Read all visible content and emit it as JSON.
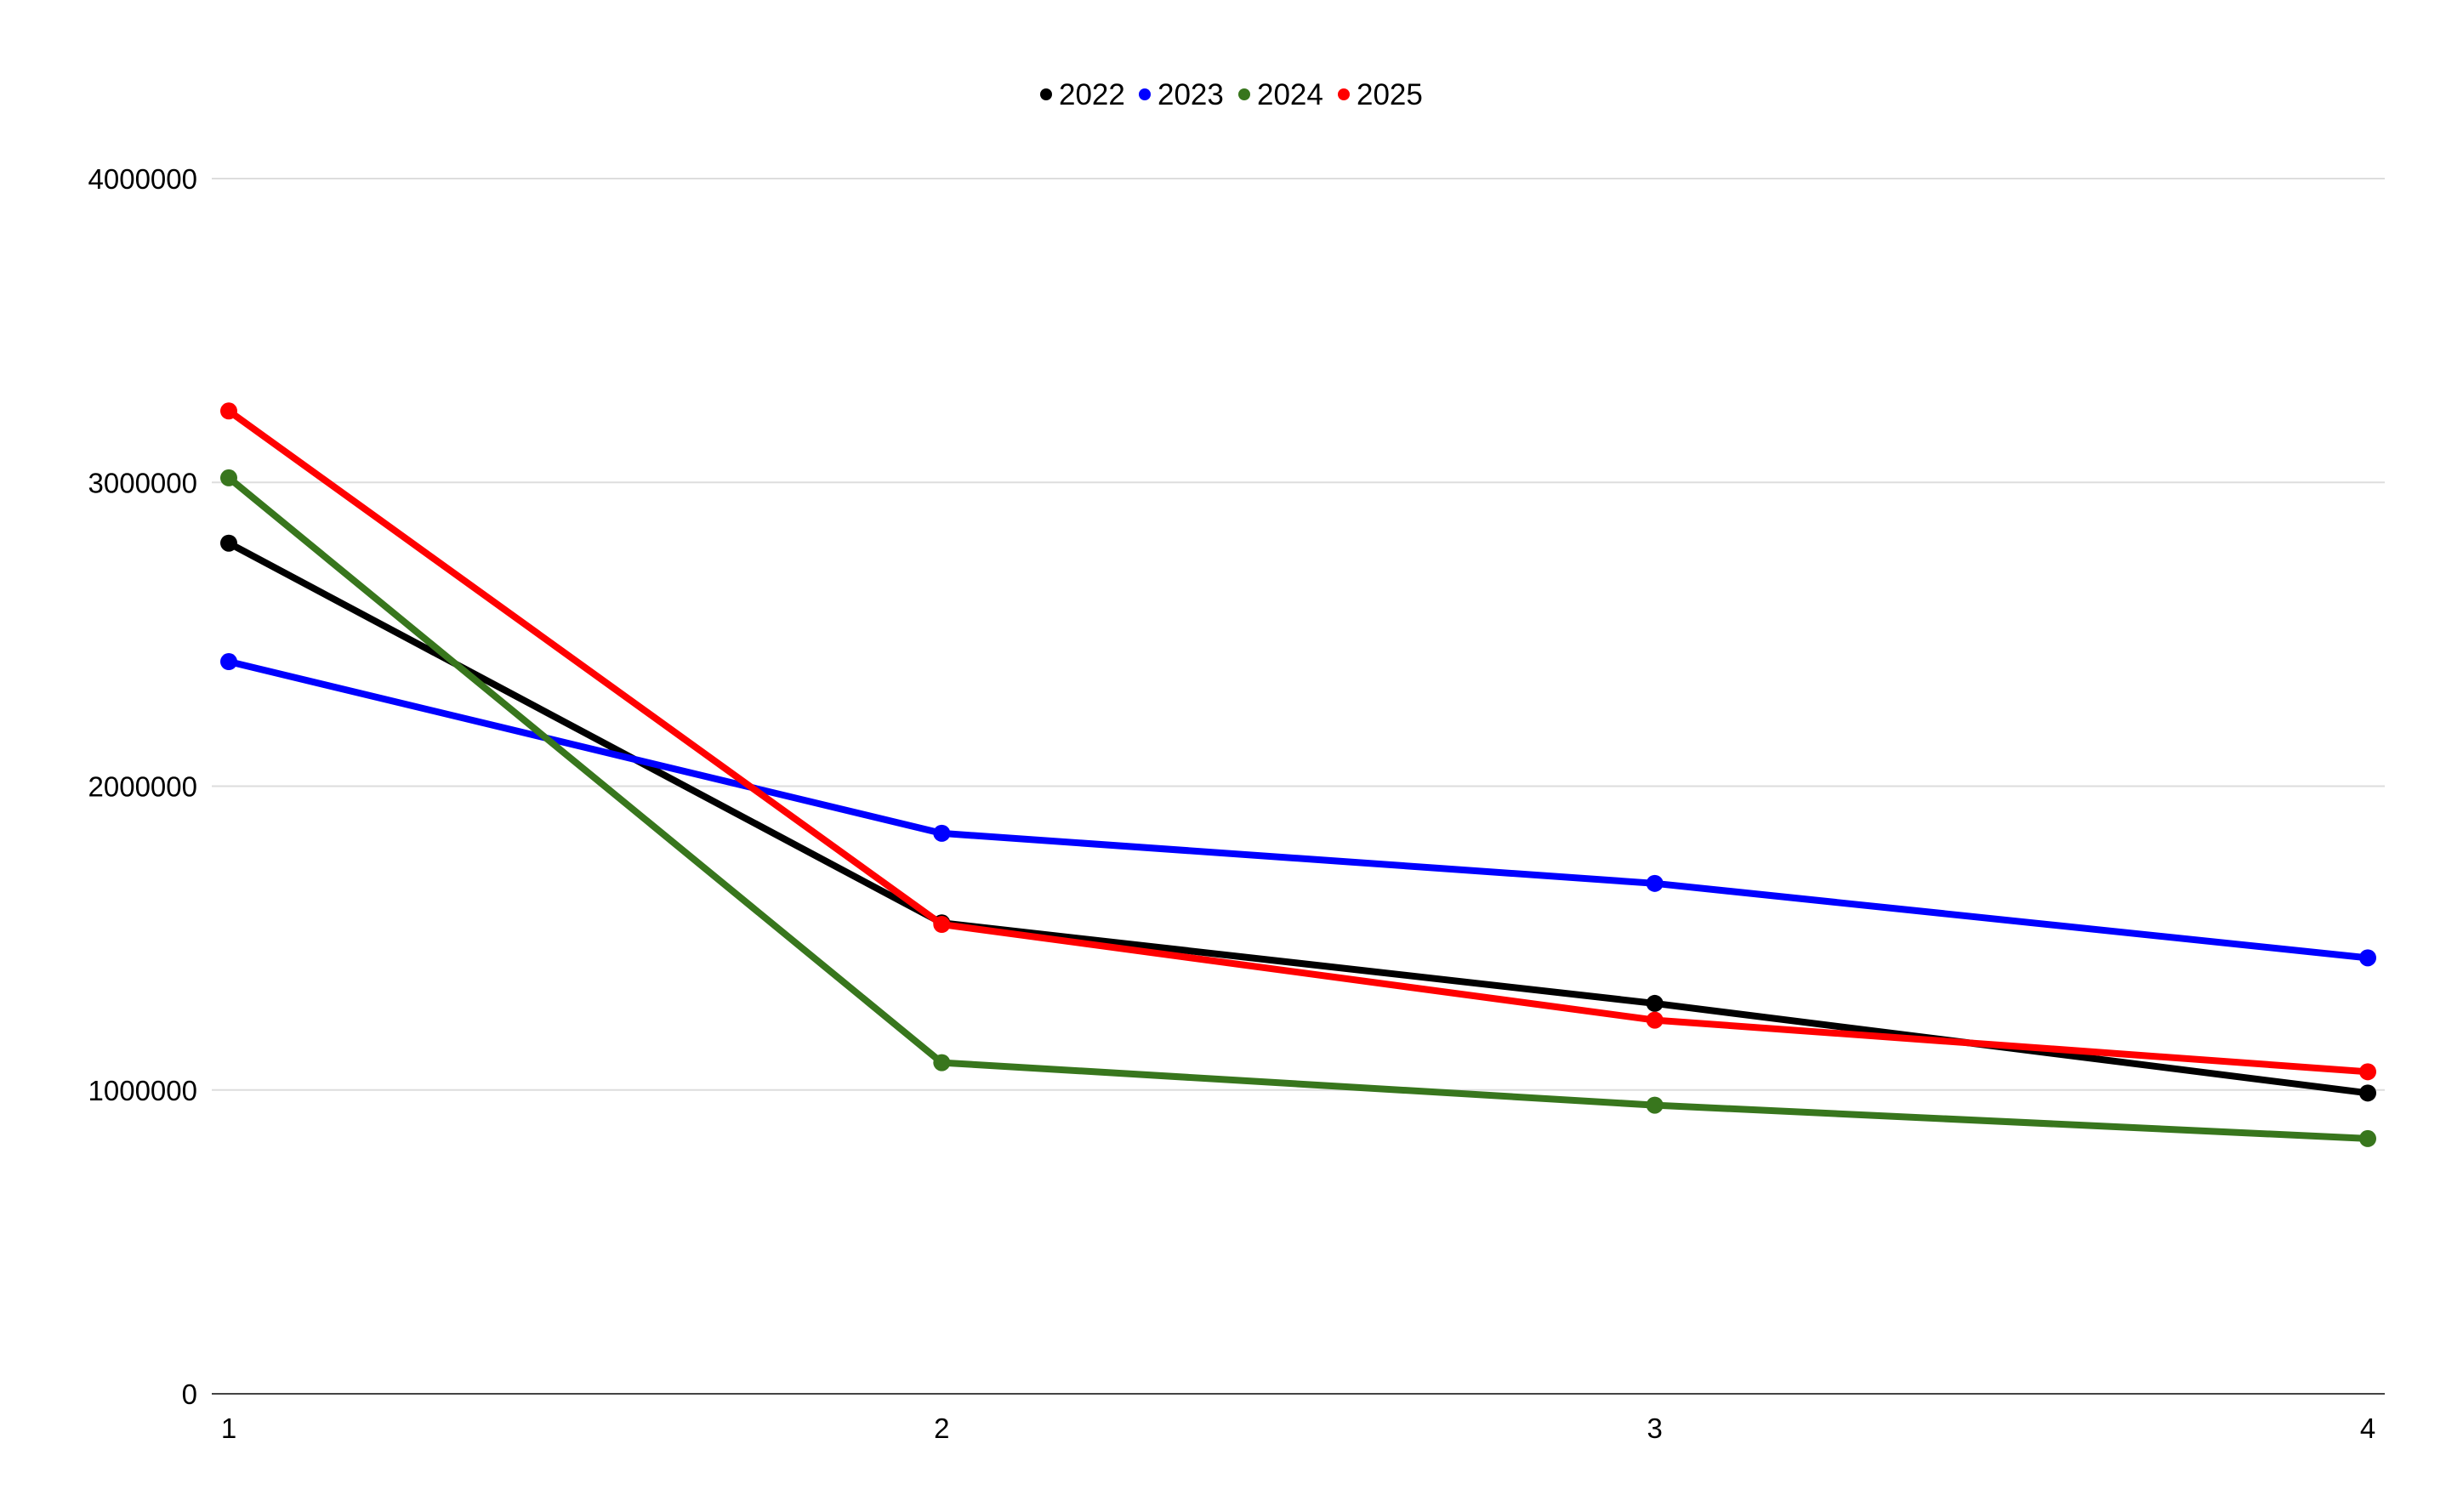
{
  "chart_data": {
    "type": "line",
    "title": "",
    "xlabel": "",
    "ylabel": "",
    "x": [
      1,
      2,
      3,
      4
    ],
    "x_tick_labels": [
      "1",
      "2",
      "3",
      "4"
    ],
    "ylim": [
      0,
      4000000
    ],
    "y_ticks": [
      0,
      1000000,
      2000000,
      3000000,
      4000000
    ],
    "y_tick_labels": [
      "0",
      "1000000",
      "2000000",
      "3000000",
      "4000000"
    ],
    "grid": true,
    "legend_position": "top",
    "markers": true,
    "series": [
      {
        "name": "2022",
        "color": "#000000",
        "values": [
          2800000,
          1550000,
          1285000,
          990000
        ]
      },
      {
        "name": "2023",
        "color": "#0000ff",
        "values": [
          2410000,
          1845000,
          1680000,
          1435000
        ]
      },
      {
        "name": "2024",
        "color": "#38761d",
        "values": [
          3015000,
          1090000,
          950000,
          840000
        ]
      },
      {
        "name": "2025",
        "color": "#ff0000",
        "values": [
          3235000,
          1545000,
          1230000,
          1060000
        ]
      }
    ]
  }
}
